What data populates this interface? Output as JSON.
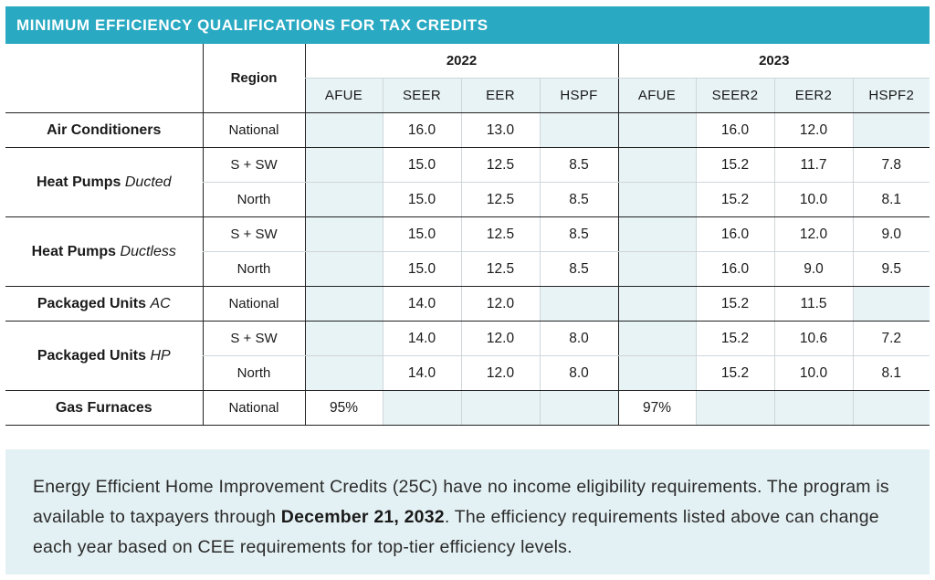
{
  "title": "MINIMUM EFFICIENCY QUALIFICATIONS FOR TAX CREDITS",
  "header": {
    "region": "Region",
    "year_2022": "2022",
    "year_2023": "2023",
    "metrics_2022": [
      "AFUE",
      "SEER",
      "EER",
      "HSPF"
    ],
    "metrics_2023": [
      "AFUE",
      "SEER2",
      "EER2",
      "HSPF2"
    ]
  },
  "rows": {
    "ac": {
      "name": "Air Conditioners",
      "sub": "",
      "regions": [
        "National"
      ],
      "vals": [
        [
          "",
          "16.0",
          "13.0",
          "",
          "",
          "16.0",
          "12.0",
          ""
        ]
      ]
    },
    "hpd": {
      "name": "Heat Pumps",
      "sub": "Ducted",
      "regions": [
        "S + SW",
        "North"
      ],
      "vals": [
        [
          "",
          "15.0",
          "12.5",
          "8.5",
          "",
          "15.2",
          "11.7",
          "7.8"
        ],
        [
          "",
          "15.0",
          "12.5",
          "8.5",
          "",
          "15.2",
          "10.0",
          "8.1"
        ]
      ]
    },
    "hpl": {
      "name": "Heat Pumps",
      "sub": "Ductless",
      "regions": [
        "S + SW",
        "North"
      ],
      "vals": [
        [
          "",
          "15.0",
          "12.5",
          "8.5",
          "",
          "16.0",
          "12.0",
          "9.0"
        ],
        [
          "",
          "15.0",
          "12.5",
          "8.5",
          "",
          "16.0",
          "9.0",
          "9.5"
        ]
      ]
    },
    "pac": {
      "name": "Packaged Units",
      "sub": "AC",
      "regions": [
        "National"
      ],
      "vals": [
        [
          "",
          "14.0",
          "12.0",
          "",
          "",
          "15.2",
          "11.5",
          ""
        ]
      ]
    },
    "php": {
      "name": "Packaged Units",
      "sub": "HP",
      "regions": [
        "S + SW",
        "North"
      ],
      "vals": [
        [
          "",
          "14.0",
          "12.0",
          "8.0",
          "",
          "15.2",
          "10.6",
          "7.2"
        ],
        [
          "",
          "14.0",
          "12.0",
          "8.0",
          "",
          "15.2",
          "10.0",
          "8.1"
        ]
      ]
    },
    "gf": {
      "name": "Gas Furnaces",
      "sub": "",
      "regions": [
        "National"
      ],
      "vals": [
        [
          "95%",
          "",
          "",
          "",
          "97%",
          "",
          "",
          ""
        ]
      ]
    }
  },
  "note": {
    "part1": "Energy Efficient Home Improvement Credits (25C) have no income eligibility requirements. The program is available to taxpayers through ",
    "date": "December 21, 2032",
    "part2": ". The efficiency requirements listed above can change each year based on CEE requirements for top-tier efficiency levels."
  }
}
